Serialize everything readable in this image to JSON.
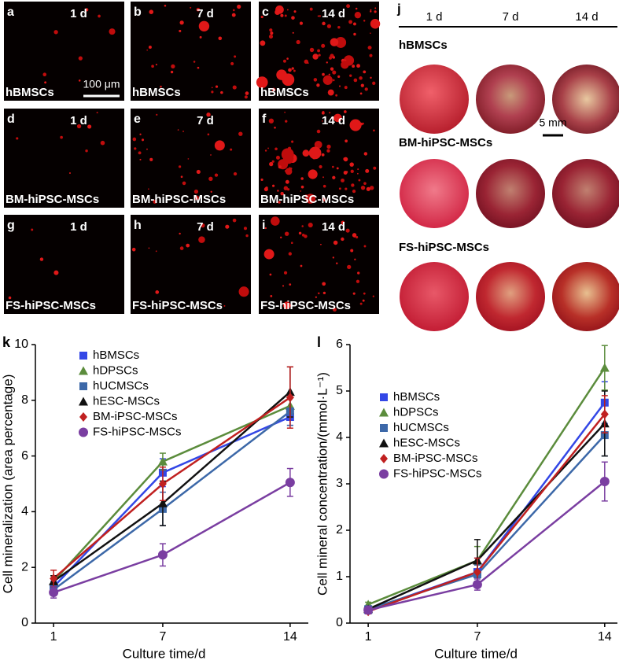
{
  "micrographs": {
    "panels": [
      {
        "letter": "a",
        "time": "1 d",
        "cell": "hBMSCs"
      },
      {
        "letter": "b",
        "time": "7 d",
        "cell": "hBMSCs"
      },
      {
        "letter": "c",
        "time": "14 d",
        "cell": "hBMSCs"
      },
      {
        "letter": "d",
        "time": "1 d",
        "cell": "BM-hiPSC-MSCs"
      },
      {
        "letter": "e",
        "time": "7 d",
        "cell": "BM-hiPSC-MSCs"
      },
      {
        "letter": "f",
        "time": "14 d",
        "cell": "BM-hiPSC-MSCs"
      },
      {
        "letter": "g",
        "time": "1 d",
        "cell": "FS-hiPSC-MSCs"
      },
      {
        "letter": "h",
        "time": "7 d",
        "cell": "FS-hiPSC-MSCs"
      },
      {
        "letter": "i",
        "time": "14 d",
        "cell": "FS-hiPSC-MSCs"
      }
    ],
    "scale_bar": "100 μm"
  },
  "photos": {
    "letter": "j",
    "times": [
      "1 d",
      "7 d",
      "14 d"
    ],
    "rows": [
      "hBMSCs",
      "BM-hiPSC-MSCs",
      "FS-hiPSC-MSCs"
    ],
    "scale_bar": "5 mm"
  },
  "chart_data": [
    {
      "type": "line",
      "label": "k",
      "xlabel": "Culture time/d",
      "ylabel": "Cell mineralization (area percentage)",
      "x": [
        1,
        7,
        14
      ],
      "xlim": [
        0,
        15
      ],
      "xticks": [
        1,
        7,
        14
      ],
      "ylim": [
        0,
        10
      ],
      "yticks": [
        0,
        2,
        4,
        6,
        8,
        10
      ],
      "series": [
        {
          "name": "hBMSCs",
          "color": "#3347e6",
          "marker": "square",
          "values": [
            1.3,
            5.4,
            7.4
          ],
          "errors": [
            0.2,
            0.5,
            0.3
          ]
        },
        {
          "name": "hDPSCs",
          "color": "#5b8c3c",
          "marker": "triangle",
          "values": [
            1.5,
            5.8,
            7.8
          ],
          "errors": [
            0.2,
            0.3,
            0.4
          ]
        },
        {
          "name": "hUCMSCs",
          "color": "#3c68a8",
          "marker": "square",
          "values": [
            1.2,
            4.1,
            7.6
          ],
          "errors": [
            0.2,
            0.6,
            0.5
          ]
        },
        {
          "name": "hESC-MSCs",
          "color": "#111111",
          "marker": "triangle",
          "values": [
            1.5,
            4.3,
            8.3
          ],
          "errors": [
            0.2,
            0.8,
            0.9
          ]
        },
        {
          "name": "BM-iPSC-MSCs",
          "color": "#c02020",
          "marker": "diamond",
          "values": [
            1.6,
            5.0,
            8.1
          ],
          "errors": [
            0.3,
            0.6,
            1.1
          ]
        },
        {
          "name": "FS-hiPSC-MSCs",
          "color": "#7a3ea1",
          "marker": "circle",
          "values": [
            1.1,
            2.45,
            5.05
          ],
          "errors": [
            0.2,
            0.4,
            0.5
          ]
        }
      ]
    },
    {
      "type": "line",
      "label": "l",
      "xlabel": "Culture time/d",
      "ylabel": "Cell mineral concentration/(mmol·L⁻¹)",
      "x": [
        1,
        7,
        14
      ],
      "xlim": [
        0,
        14.7
      ],
      "xticks": [
        1,
        7,
        14
      ],
      "ylim": [
        0,
        6
      ],
      "yticks": [
        0,
        1,
        2,
        3,
        4,
        5,
        6
      ],
      "series": [
        {
          "name": "hBMSCs",
          "color": "#3347e6",
          "marker": "square",
          "values": [
            0.28,
            1.1,
            4.75
          ],
          "errors": [
            0.05,
            0.3,
            0.45
          ]
        },
        {
          "name": "hDPSCs",
          "color": "#5b8c3c",
          "marker": "triangle",
          "values": [
            0.4,
            1.35,
            5.5
          ],
          "errors": [
            0.05,
            0.3,
            0.48
          ]
        },
        {
          "name": "hUCMSCs",
          "color": "#3c68a8",
          "marker": "square",
          "values": [
            0.3,
            1.05,
            4.05
          ],
          "errors": [
            0.05,
            0.2,
            0.45
          ]
        },
        {
          "name": "hESC-MSCs",
          "color": "#111111",
          "marker": "triangle",
          "values": [
            0.3,
            1.35,
            4.3
          ],
          "errors": [
            0.05,
            0.45,
            0.7
          ]
        },
        {
          "name": "BM-iPSC-MSCs",
          "color": "#c02020",
          "marker": "diamond",
          "values": [
            0.25,
            1.1,
            4.5
          ],
          "errors": [
            0.05,
            0.3,
            0.4
          ]
        },
        {
          "name": "FS-hiPSC-MSCs",
          "color": "#7a3ea1",
          "marker": "circle",
          "values": [
            0.28,
            0.83,
            3.05
          ],
          "errors": [
            0.05,
            0.12,
            0.42
          ]
        }
      ]
    }
  ]
}
